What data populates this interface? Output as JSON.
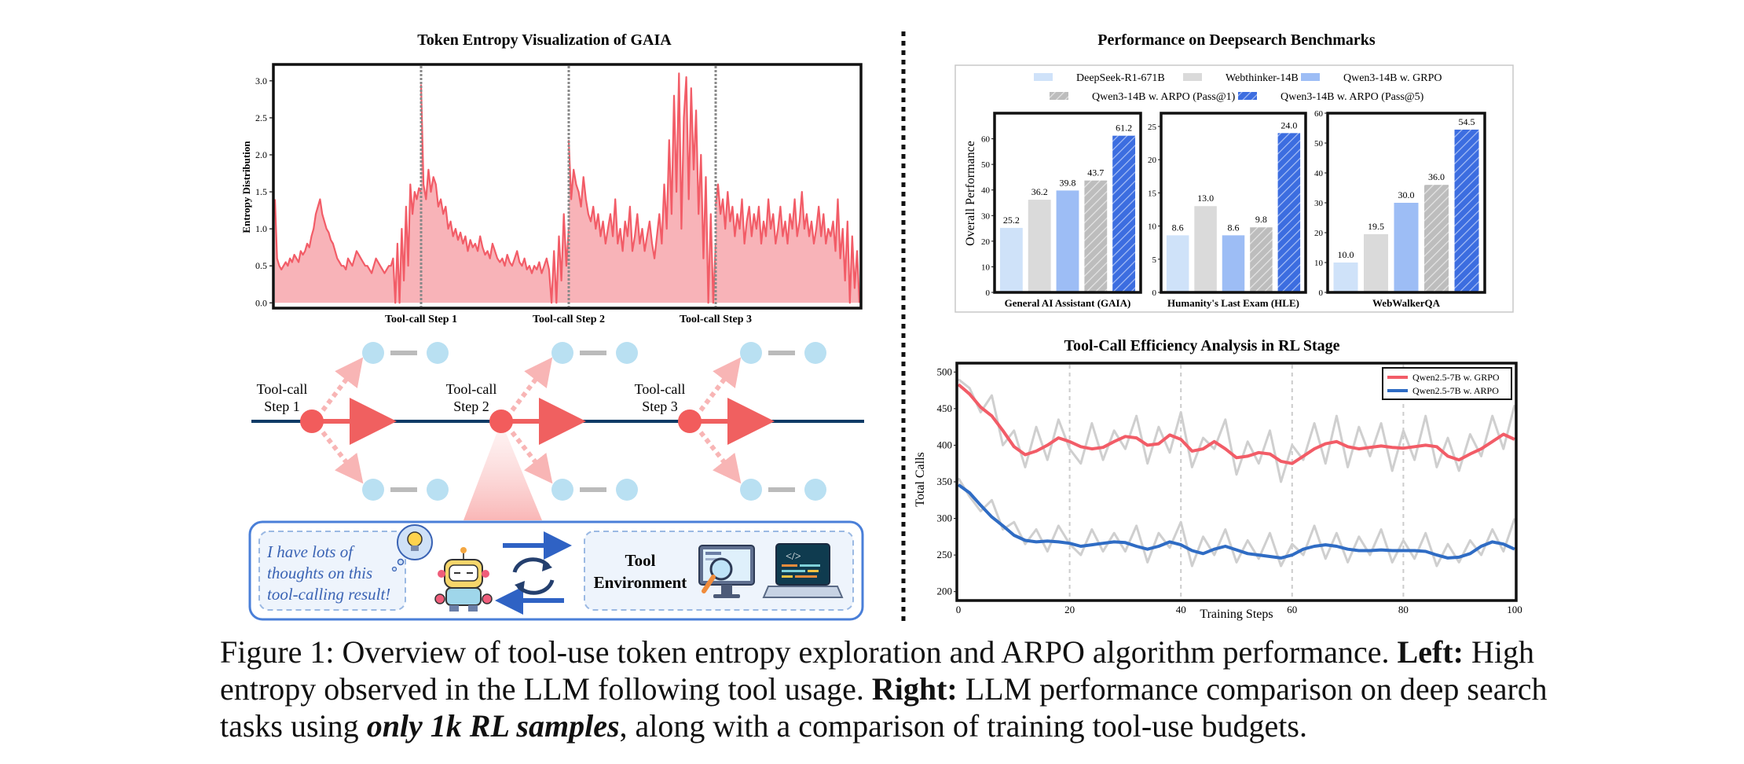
{
  "entropy_panel": {
    "title": "Token Entropy Visualization of GAIA",
    "ylabel": "Entropy Distribution",
    "y_ticks": [
      "0.0",
      "0.5",
      "1.0",
      "1.5",
      "2.0",
      "2.5",
      "3.0"
    ],
    "steps": [
      "Tool-call Step 1",
      "Tool-call Step 2",
      "Tool-call Step 3"
    ],
    "colors": {
      "line": "#f25c67",
      "fill": "#f7a6ab",
      "marker": "#888888"
    }
  },
  "diagram": {
    "nodes": [
      {
        "label_line1": "Tool-call",
        "label_line2": "Step 1"
      },
      {
        "label_line1": "Tool-call",
        "label_line2": "Step 2"
      },
      {
        "label_line1": "Tool-call",
        "label_line2": "Step 3"
      }
    ],
    "thought": [
      "I have lots of",
      "thoughts on this",
      "tool-calling result!"
    ],
    "env_label": [
      "Tool",
      "Environment"
    ],
    "icons": [
      "robot-icon",
      "lightbulb-icon",
      "cycle-arrows-icon",
      "magnifier-screen-icon",
      "laptop-code-icon"
    ],
    "colors": {
      "node": "#f25c5c",
      "leaf": "#b9e0f2",
      "line": "#0d3b66",
      "box": "#4a7fd8"
    }
  },
  "bench_panel": {
    "title": "Performance on Deepsearch Benchmarks",
    "ylabel": "Overall Performance",
    "legend": [
      "DeepSeek-R1-671B",
      "Webthinker-14B",
      "Qwen3-14B w. GRPO",
      "Qwen3-14B w. ARPO (Pass@1)",
      "Qwen3-14B w. ARPO (Pass@5)"
    ],
    "series_colors": [
      "#cfe2f9",
      "#dadada",
      "#9dbdf5",
      "#bdbdbd",
      "#3c6de0"
    ]
  },
  "efficiency_panel": {
    "title": "Tool-Call Efficiency Analysis in RL Stage",
    "xlabel": "Training Steps",
    "ylabel": "Total Calls",
    "y_ticks": [
      "200",
      "250",
      "300",
      "350",
      "400",
      "450",
      "500"
    ],
    "x_ticks": [
      "0",
      "20",
      "40",
      "60",
      "80",
      "100"
    ],
    "legend": [
      "Qwen2.5-7B w. GRPO",
      "Qwen2.5-7B w. ARPO"
    ]
  },
  "chart_data": [
    {
      "type": "area",
      "title": "Token Entropy Visualization of GAIA",
      "xlabel": "",
      "ylabel": "Entropy Distribution",
      "ylim": [
        -0.05,
        3.2
      ],
      "markers": [
        "Tool-call Step 1",
        "Tool-call Step 2",
        "Tool-call Step 3"
      ],
      "segments": [
        {
          "name": "",
          "values": [
            1.4,
            0.6,
            0.5,
            0.45,
            0.5,
            0.55,
            0.5,
            0.6,
            0.55,
            0.65,
            0.6,
            0.55,
            0.7,
            0.65,
            0.7,
            0.8,
            0.75,
            0.9,
            1.0,
            1.2,
            1.3,
            1.4,
            1.2,
            1.1,
            1.0,
            0.95,
            0.85,
            0.8,
            0.7,
            0.6,
            0.55,
            0.5,
            0.5,
            0.45,
            0.6,
            0.55,
            0.5,
            0.6,
            0.7,
            0.65,
            0.6,
            0.55,
            0.5,
            0.5,
            0.45,
            0.4,
            0.5,
            0.6,
            0.55,
            0.5,
            0.45,
            0.4,
            0.45,
            0.5,
            0.5,
            0.6,
            0.0,
            0.8,
            0.0,
            1.0,
            0.3,
            1.3,
            0.5,
            1.6,
            1.2,
            1.5,
            1.4,
            1.55,
            1.5
          ]
        },
        {
          "name": "",
          "values": [
            2.95,
            1.6,
            1.4,
            1.8,
            1.5,
            1.7,
            1.6,
            1.3,
            1.4,
            1.2,
            1.3,
            1.0,
            1.1,
            0.9,
            1.0,
            0.85,
            0.95,
            0.8,
            0.9,
            0.7,
            0.85,
            0.75,
            0.8,
            0.7,
            0.9,
            0.75,
            0.65,
            0.7,
            0.6,
            0.8,
            0.7,
            0.6,
            0.55,
            0.6,
            0.5,
            0.65,
            0.55,
            0.5,
            0.6,
            0.7,
            0.55,
            0.5,
            0.6,
            0.45,
            0.5,
            0.4,
            0.5,
            0.45,
            0.55,
            0.4,
            0.5,
            0.6,
            0.45,
            0.0,
            0.7,
            0.0,
            0.9,
            0.3,
            1.2,
            0.5,
            1.0
          ]
        },
        {
          "name": "",
          "values": [
            2.2,
            1.4,
            1.8,
            1.6,
            1.5,
            1.3,
            1.7,
            1.4,
            1.2,
            1.1,
            1.3,
            1.0,
            1.2,
            0.9,
            1.1,
            0.8,
            1.0,
            1.2,
            0.9,
            1.4,
            0.8,
            1.0,
            0.7,
            1.1,
            0.9,
            1.3,
            0.7,
            0.9,
            1.2,
            0.8,
            1.0,
            0.7,
            0.9,
            1.1,
            0.8,
            0.6,
            0.9,
            1.2,
            0.8,
            1.6,
            1.0,
            2.2,
            1.2,
            2.8,
            1.5,
            3.1,
            1.0,
            2.5,
            3.05,
            1.4,
            2.9,
            1.8,
            2.6,
            1.2,
            2.0,
            0.6,
            1.7,
            0.0,
            1.2,
            0.0,
            0.8
          ]
        },
        {
          "name": "",
          "values": [
            1.3,
            1.6,
            1.2,
            1.4,
            1.0,
            1.5,
            1.1,
            1.3,
            0.9,
            1.2,
            1.0,
            1.4,
            0.8,
            1.1,
            1.3,
            0.9,
            1.2,
            1.0,
            1.3,
            0.8,
            1.1,
            0.9,
            1.4,
            1.0,
            1.2,
            0.8,
            1.0,
            1.3,
            0.9,
            1.1,
            0.8,
            1.2,
            1.0,
            1.4,
            0.9,
            1.1,
            1.5,
            1.0,
            1.2,
            0.9,
            1.1,
            0.8,
            1.0,
            1.3,
            0.9,
            1.2,
            0.8,
            1.0,
            0.9,
            1.1,
            0.7,
            1.4,
            0.6,
            1.0,
            0.3,
            1.1,
            0.0,
            0.9,
            0.2,
            0.7,
            0.0
          ]
        }
      ]
    },
    {
      "type": "bar",
      "title": "Performance on Deepsearch Benchmarks",
      "ylabel": "Overall Performance",
      "legend_placement": "top",
      "series": [
        {
          "name": "DeepSeek-R1-671B"
        },
        {
          "name": "Webthinker-14B"
        },
        {
          "name": "Qwen3-14B w. GRPO"
        },
        {
          "name": "Qwen3-14B w. ARPO (Pass@1)"
        },
        {
          "name": "Qwen3-14B w. ARPO (Pass@5)"
        }
      ],
      "subplots": [
        {
          "category": "General AI Assistant (GAIA)",
          "ylim": [
            0,
            70
          ],
          "ticks": [
            "0",
            "10",
            "20",
            "30",
            "40",
            "50",
            "60"
          ],
          "values": [
            25.2,
            36.2,
            39.8,
            43.7,
            61.2
          ],
          "labels": [
            "25.2",
            "36.2",
            "39.8",
            "43.7",
            "61.2"
          ]
        },
        {
          "category": "Humanity's Last Exam (HLE)",
          "ylim": [
            0,
            27
          ],
          "ticks": [
            "0",
            "5",
            "10",
            "15",
            "20",
            "25"
          ],
          "values": [
            8.6,
            13.0,
            8.6,
            9.8,
            24.0
          ],
          "labels": [
            "8.6",
            "13.0",
            "8.6",
            "9.8",
            "24.0"
          ]
        },
        {
          "category": "WebWalkerQA",
          "ylim": [
            0,
            60
          ],
          "ticks": [
            "0",
            "10",
            "20",
            "30",
            "40",
            "50",
            "60"
          ],
          "values": [
            10.0,
            19.5,
            30.0,
            36.0,
            54.5
          ],
          "labels": [
            "10.0",
            "19.5",
            "30.0",
            "36.0",
            "54.5"
          ]
        }
      ]
    },
    {
      "type": "line",
      "title": "Tool-Call Efficiency Analysis in RL Stage",
      "xlabel": "Training Steps",
      "ylabel": "Total Calls",
      "xlim": [
        0,
        100
      ],
      "ylim": [
        190,
        510
      ],
      "legend_placement": "top-right",
      "series": [
        {
          "name": "Qwen2.5-7B w. GRPO",
          "x": [
            0,
            2,
            4,
            6,
            8,
            10,
            12,
            14,
            16,
            18,
            20,
            22,
            24,
            26,
            28,
            30,
            32,
            34,
            36,
            38,
            40,
            42,
            44,
            46,
            48,
            50,
            52,
            54,
            56,
            58,
            60,
            62,
            64,
            66,
            68,
            70,
            72,
            74,
            76,
            78,
            80,
            82,
            84,
            86,
            88,
            90,
            92,
            94,
            96,
            98,
            100
          ],
          "values": [
            483,
            470,
            452,
            440,
            420,
            398,
            387,
            392,
            400,
            410,
            405,
            398,
            395,
            397,
            405,
            412,
            410,
            400,
            402,
            414,
            408,
            392,
            395,
            405,
            395,
            383,
            385,
            390,
            388,
            378,
            375,
            385,
            395,
            402,
            405,
            398,
            395,
            397,
            399,
            397,
            396,
            398,
            400,
            398,
            385,
            380,
            388,
            395,
            405,
            415,
            408
          ],
          "raw": [
            490,
            478,
            445,
            468,
            400,
            420,
            370,
            425,
            380,
            435,
            395,
            375,
            430,
            380,
            420,
            395,
            440,
            375,
            425,
            390,
            445,
            370,
            410,
            395,
            435,
            360,
            405,
            375,
            420,
            350,
            400,
            380,
            430,
            375,
            440,
            370,
            425,
            385,
            430,
            365,
            420,
            380,
            440,
            370,
            410,
            365,
            415,
            385,
            440,
            395,
            455
          ]
        },
        {
          "name": "Qwen2.5-7B w. ARPO",
          "x": [
            0,
            2,
            4,
            6,
            8,
            10,
            12,
            14,
            16,
            18,
            20,
            22,
            24,
            26,
            28,
            30,
            32,
            34,
            36,
            38,
            40,
            42,
            44,
            46,
            48,
            50,
            52,
            54,
            56,
            58,
            60,
            62,
            64,
            66,
            68,
            70,
            72,
            74,
            76,
            78,
            80,
            82,
            84,
            86,
            88,
            90,
            92,
            94,
            96,
            98,
            100
          ],
          "values": [
            346,
            335,
            318,
            302,
            290,
            277,
            270,
            268,
            269,
            268,
            266,
            262,
            264,
            266,
            268,
            267,
            262,
            258,
            262,
            268,
            264,
            256,
            252,
            258,
            262,
            257,
            252,
            250,
            248,
            246,
            250,
            258,
            262,
            264,
            262,
            258,
            256,
            256,
            257,
            256,
            256,
            256,
            255,
            250,
            246,
            247,
            252,
            262,
            268,
            265,
            258
          ],
          "raw": [
            355,
            330,
            310,
            325,
            285,
            295,
            265,
            285,
            255,
            290,
            265,
            250,
            285,
            255,
            280,
            255,
            290,
            240,
            280,
            260,
            295,
            235,
            275,
            250,
            285,
            240,
            270,
            245,
            280,
            235,
            265,
            250,
            290,
            245,
            280,
            240,
            275,
            250,
            285,
            240,
            270,
            245,
            280,
            235,
            265,
            240,
            270,
            250,
            285,
            255,
            300
          ]
        }
      ]
    }
  ],
  "caption": {
    "prefix": "Figure 1: Overview of tool-use token entropy exploration and ARPO algorithm performance.",
    "left_label": "Left:",
    "left_text": "High entropy observed in the LLM following tool usage.",
    "right_label": "Right:",
    "right_text": "LLM performance comparison on deep search tasks using",
    "emph": "only 1k RL samples",
    "suffix": ", along with a comparison of training tool-use budgets."
  }
}
